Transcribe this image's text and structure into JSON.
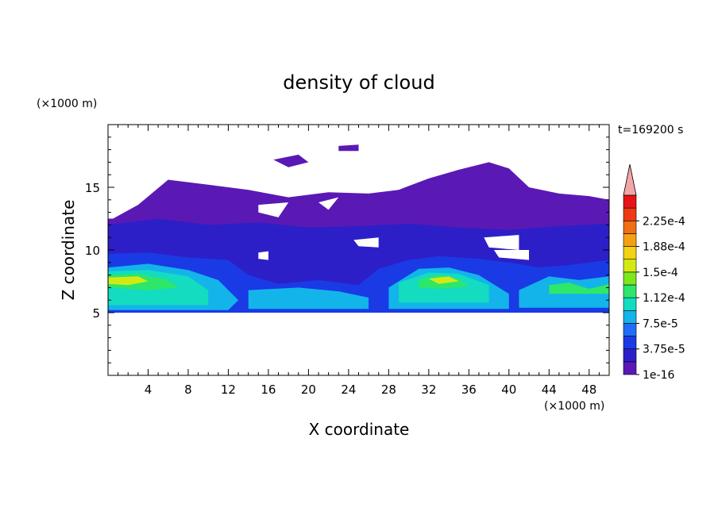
{
  "chart_data": {
    "type": "heatmap",
    "title": "density of cloud",
    "xlabel": "X coordinate",
    "ylabel": "Z coordinate",
    "x_unit": "(×1000 m)",
    "y_unit": "(×1000 m)",
    "time_label": "t=169200 s",
    "xlim": [
      0,
      50
    ],
    "ylim": [
      0,
      20
    ],
    "x_ticks": [
      4,
      8,
      12,
      16,
      20,
      24,
      28,
      32,
      36,
      40,
      44,
      48
    ],
    "y_ticks": [
      5,
      10,
      15
    ],
    "colorbar": {
      "labels": [
        "1e-16",
        "3.75e-5",
        "7.5e-5",
        "1.12e-4",
        "1.5e-4",
        "1.88e-4",
        "2.25e-4"
      ],
      "colors": [
        "#5a19b4",
        "#2d1fc8",
        "#1a3ae6",
        "#1f6ef5",
        "#12b4ea",
        "#14dcc0",
        "#2ee66a",
        "#7ee61e",
        "#d2ea14",
        "#f2d214",
        "#f5a014",
        "#f06e14",
        "#ee3a14",
        "#e61414"
      ],
      "extend_color": "#f4a6a6"
    },
    "cloud_regions": [
      {
        "level": 0,
        "polygon": [
          [
            0.5,
            12.5
          ],
          [
            3,
            13.6
          ],
          [
            6,
            15.6
          ],
          [
            10,
            15.2
          ],
          [
            14,
            14.8
          ],
          [
            18,
            14.2
          ],
          [
            22,
            14.6
          ],
          [
            26,
            14.5
          ],
          [
            29,
            14.8
          ],
          [
            32,
            15.7
          ],
          [
            35,
            16.4
          ],
          [
            38,
            17.0
          ],
          [
            40,
            16.5
          ],
          [
            42,
            15.0
          ],
          [
            45,
            14.5
          ],
          [
            48,
            14.3
          ],
          [
            50,
            14.0
          ],
          [
            50,
            5.0
          ],
          [
            0,
            5.0
          ],
          [
            0,
            12.5
          ]
        ]
      },
      {
        "level": 0,
        "polygon": [
          [
            16.5,
            17.2
          ],
          [
            19,
            17.6
          ],
          [
            20,
            17.0
          ],
          [
            18,
            16.6
          ]
        ]
      },
      {
        "level": 0,
        "polygon": [
          [
            23,
            18.3
          ],
          [
            25,
            18.4
          ],
          [
            25,
            17.9
          ],
          [
            23,
            17.9
          ]
        ]
      },
      {
        "level": 1,
        "polygon": [
          [
            0,
            12.0
          ],
          [
            5,
            12.5
          ],
          [
            10,
            12.0
          ],
          [
            15,
            12.2
          ],
          [
            20,
            11.8
          ],
          [
            25,
            11.9
          ],
          [
            30,
            12.1
          ],
          [
            35,
            11.8
          ],
          [
            40,
            11.6
          ],
          [
            45,
            11.9
          ],
          [
            50,
            12.1
          ],
          [
            50,
            5.0
          ],
          [
            0,
            5.0
          ]
        ]
      },
      {
        "level": 2,
        "polygon": [
          [
            0,
            9.7
          ],
          [
            4,
            9.8
          ],
          [
            8,
            9.4
          ],
          [
            12,
            9.2
          ],
          [
            14,
            8.0
          ],
          [
            17,
            7.3
          ],
          [
            21,
            7.6
          ],
          [
            25,
            7.2
          ],
          [
            27,
            8.5
          ],
          [
            30,
            9.2
          ],
          [
            33,
            9.5
          ],
          [
            37,
            9.3
          ],
          [
            40,
            9.0
          ],
          [
            43,
            8.6
          ],
          [
            46,
            8.8
          ],
          [
            50,
            9.2
          ],
          [
            50,
            5.0
          ],
          [
            0,
            5.0
          ]
        ]
      },
      {
        "level": 4,
        "polygon": [
          [
            0,
            8.6
          ],
          [
            4,
            8.9
          ],
          [
            8,
            8.4
          ],
          [
            11,
            7.6
          ],
          [
            13,
            6.0
          ],
          [
            12,
            5.2
          ],
          [
            0,
            5.2
          ]
        ]
      },
      {
        "level": 4,
        "polygon": [
          [
            14,
            6.8
          ],
          [
            19,
            7.0
          ],
          [
            23,
            6.7
          ],
          [
            26,
            6.2
          ],
          [
            26,
            5.3
          ],
          [
            14,
            5.3
          ]
        ]
      },
      {
        "level": 4,
        "polygon": [
          [
            28,
            7.0
          ],
          [
            31,
            8.5
          ],
          [
            34,
            8.6
          ],
          [
            37,
            8.0
          ],
          [
            40,
            6.5
          ],
          [
            40,
            5.3
          ],
          [
            28,
            5.3
          ]
        ]
      },
      {
        "level": 4,
        "polygon": [
          [
            41,
            6.8
          ],
          [
            44,
            7.9
          ],
          [
            47,
            7.6
          ],
          [
            50,
            7.9
          ],
          [
            50,
            5.4
          ],
          [
            41,
            5.4
          ]
        ]
      },
      {
        "level": 5,
        "polygon": [
          [
            0,
            8.3
          ],
          [
            4,
            8.4
          ],
          [
            8,
            7.9
          ],
          [
            10,
            6.8
          ],
          [
            10,
            5.6
          ],
          [
            0,
            5.6
          ]
        ]
      },
      {
        "level": 5,
        "polygon": [
          [
            29,
            7.4
          ],
          [
            32,
            8.2
          ],
          [
            35,
            8.1
          ],
          [
            38,
            7.2
          ],
          [
            38,
            5.8
          ],
          [
            29,
            5.8
          ]
        ]
      },
      {
        "level": 6,
        "polygon": [
          [
            0,
            8.0
          ],
          [
            3,
            8.1
          ],
          [
            6,
            7.6
          ],
          [
            7,
            7.0
          ],
          [
            4,
            6.8
          ],
          [
            0,
            7.0
          ]
        ]
      },
      {
        "level": 6,
        "polygon": [
          [
            31,
            7.6
          ],
          [
            33,
            8.0
          ],
          [
            35,
            7.7
          ],
          [
            36,
            7.1
          ],
          [
            33,
            6.9
          ],
          [
            31,
            7.0
          ]
        ]
      },
      {
        "level": 6,
        "polygon": [
          [
            44,
            7.2
          ],
          [
            46,
            7.4
          ],
          [
            48,
            6.9
          ],
          [
            50,
            7.3
          ],
          [
            50,
            6.5
          ],
          [
            44,
            6.5
          ]
        ]
      },
      {
        "level": 8,
        "polygon": [
          [
            0,
            7.8
          ],
          [
            3,
            7.9
          ],
          [
            4,
            7.5
          ],
          [
            2,
            7.2
          ],
          [
            0,
            7.3
          ]
        ]
      },
      {
        "level": 8,
        "polygon": [
          [
            32,
            7.7
          ],
          [
            34,
            7.9
          ],
          [
            35,
            7.5
          ],
          [
            33,
            7.3
          ]
        ]
      }
    ],
    "clear_regions": [
      {
        "polygon": [
          [
            15,
            13.6
          ],
          [
            18,
            13.8
          ],
          [
            17,
            12.6
          ],
          [
            15,
            13.0
          ]
        ]
      },
      {
        "polygon": [
          [
            21,
            13.8
          ],
          [
            23,
            14.2
          ],
          [
            22,
            13.2
          ]
        ]
      },
      {
        "polygon": [
          [
            24.5,
            10.8
          ],
          [
            27,
            11.0
          ],
          [
            27,
            10.2
          ],
          [
            25,
            10.3
          ]
        ]
      },
      {
        "polygon": [
          [
            37.5,
            11.0
          ],
          [
            41,
            11.2
          ],
          [
            41,
            10.0
          ],
          [
            38,
            10.2
          ]
        ]
      },
      {
        "polygon": [
          [
            38.5,
            10.0
          ],
          [
            42,
            10.0
          ],
          [
            42,
            9.2
          ],
          [
            39,
            9.4
          ]
        ]
      },
      {
        "polygon": [
          [
            15,
            9.8
          ],
          [
            16,
            9.9
          ],
          [
            16,
            9.2
          ],
          [
            15,
            9.3
          ]
        ]
      }
    ]
  }
}
